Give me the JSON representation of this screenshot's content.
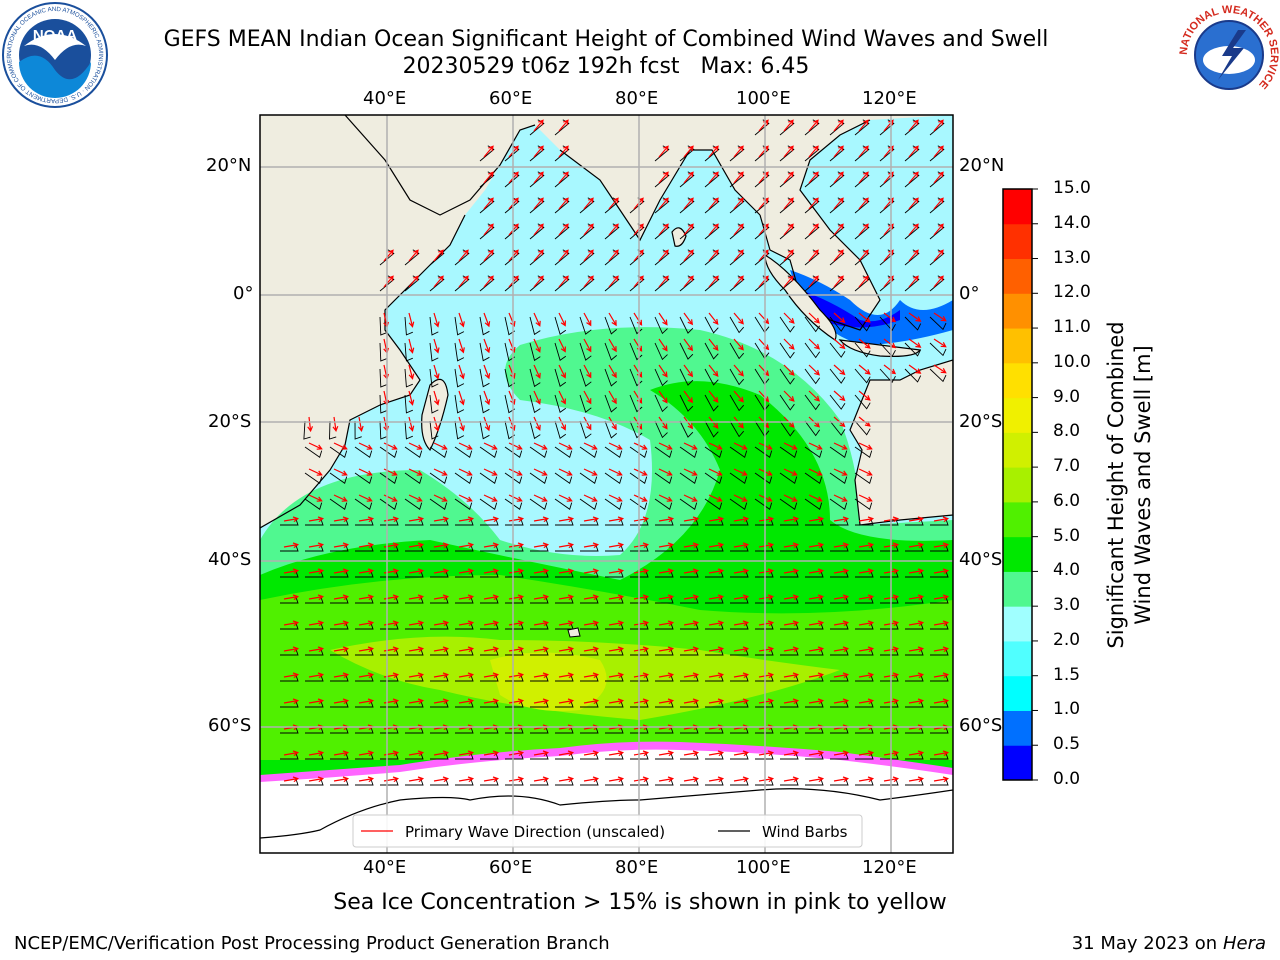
{
  "header": {
    "title": "GEFS MEAN Indian Ocean Significant Height of Combined Wind Waves and Swell",
    "subtitle_run": "20230529 t06z 192h fcst",
    "subtitle_max": "Max: 6.45"
  },
  "logos": {
    "left": {
      "name": "noaa-logo",
      "text": "NOAA",
      "ring_text": "NATIONAL OCEANIC AND ATMOSPHERIC ADMINISTRATION · U.S. DEPARTMENT OF COMMERCE",
      "color": "#1a4f9c"
    },
    "right": {
      "name": "nws-logo",
      "ring_text": "NATIONAL WEATHER SERVICE",
      "color": "#d42a1e"
    }
  },
  "map": {
    "lon_ticks": [
      "40°E",
      "60°E",
      "80°E",
      "100°E",
      "120°E"
    ],
    "lat_ticks": [
      "20°N",
      "0°",
      "20°S",
      "40°S",
      "60°S"
    ],
    "ocean_color": "#a8f8ff",
    "land_color": "#efede0",
    "ice_color": "#ffffff"
  },
  "legend": {
    "wave_label": "Primary Wave Direction (unscaled)",
    "wave_color": "#ff0000",
    "wind_label": "Wind Barbs",
    "wind_color": "#000000"
  },
  "colorbar": {
    "title_line1": "Significant Height of Combined",
    "title_line2": "Wind Waves and Swell [m]",
    "levels": [
      "0.0",
      "0.5",
      "1.0",
      "1.5",
      "2.0",
      "3.0",
      "4.0",
      "5.0",
      "6.0",
      "7.0",
      "8.0",
      "9.0",
      "10.0",
      "11.0",
      "12.0",
      "13.0",
      "14.0",
      "15.0"
    ],
    "colors": [
      "#0000ff",
      "#0070ff",
      "#00ffff",
      "#50ffff",
      "#a0ffff",
      "#50f890",
      "#00e800",
      "#50f000",
      "#a8f000",
      "#d0f000",
      "#f0f000",
      "#ffe000",
      "#ffc000",
      "#ff9000",
      "#ff6000",
      "#ff3000",
      "#ff0000"
    ]
  },
  "footer": {
    "ice_note": "Sea Ice Concentration > 15% is shown in pink to yellow",
    "credit": "NCEP/EMC/Verification Post Processing Product Generation Branch",
    "date": "31 May 2023 on",
    "host": "Hera"
  }
}
